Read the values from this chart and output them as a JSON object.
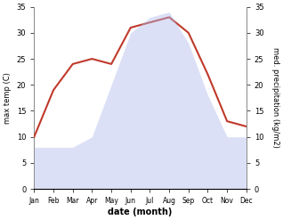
{
  "months": [
    "Jan",
    "Feb",
    "Mar",
    "Apr",
    "May",
    "Jun",
    "Jul",
    "Aug",
    "Sep",
    "Oct",
    "Nov",
    "Dec"
  ],
  "temperature": [
    10,
    19,
    24,
    25,
    24,
    31,
    32,
    33,
    30,
    22,
    13,
    12
  ],
  "precipitation": [
    8,
    8,
    8,
    10,
    20,
    30,
    33,
    34,
    28,
    18,
    10,
    10
  ],
  "temp_color": "#c0392b",
  "precip_color": "#b0bcec",
  "ylabel_left": "max temp (C)",
  "ylabel_right": "med. precipitation (kg/m2)",
  "xlabel": "date (month)",
  "ylim_left": [
    0,
    35
  ],
  "ylim_right": [
    0,
    35
  ],
  "yticks": [
    0,
    5,
    10,
    15,
    20,
    25,
    30,
    35
  ],
  "bg_color": "#ffffff"
}
